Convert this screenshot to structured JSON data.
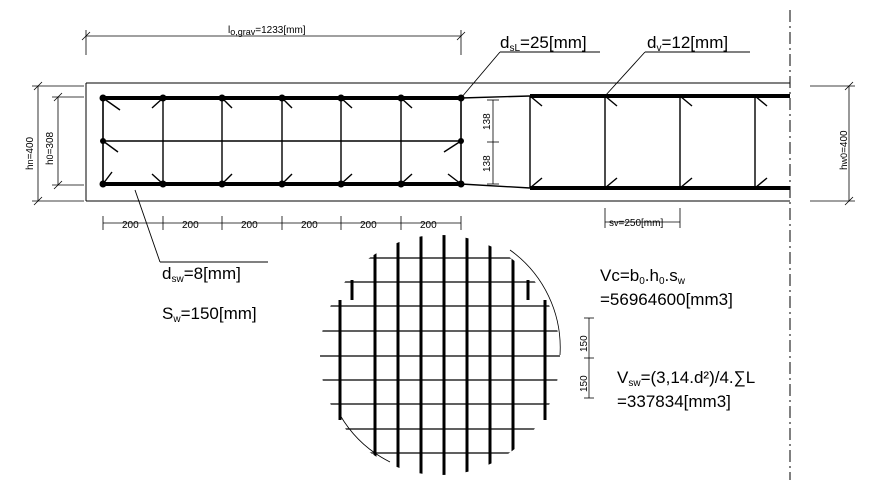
{
  "dimensions": {
    "top_length": {
      "pre": "l",
      "sub": "o,grav",
      "post": "=1233[mm]"
    },
    "left_h": {
      "pre": "h",
      "sub": "n",
      "post": "=400"
    },
    "left_h0": {
      "pre": "h",
      "sub": "0",
      "post": "=308"
    },
    "right_h": {
      "pre": "h",
      "sub": "w0",
      "post": "=400"
    },
    "spacings": [
      "200",
      "200",
      "200",
      "200",
      "200",
      "200"
    ],
    "sw": {
      "pre": "s",
      "sub": "v",
      "post": "=250[mm]"
    },
    "half_top": "138",
    "half_bottom": "138",
    "grid_spacing_1": "150",
    "grid_spacing_2": "150"
  },
  "labels": {
    "dsl": {
      "pre": "d",
      "sub": "sL",
      "post": "=25[mm]"
    },
    "dv": {
      "pre": "d",
      "sub": "v",
      "post": "=12[mm]"
    },
    "dsw": {
      "pre": "d",
      "sub": "sw",
      "post": "=8[mm]"
    },
    "Sw": {
      "pre": "S",
      "sub": "w",
      "post": "=150[mm]"
    }
  },
  "formulas": {
    "vc_line1": {
      "pre": "Vc=b",
      "sub1": "0",
      "mid": ".h",
      "sub2": "0",
      "mid2": ".s",
      "sub3": "w"
    },
    "vc_line2": "=56964600[mm3]",
    "vsw_line1": {
      "pre": "V",
      "sub": "sw",
      "post": "=(3,14.d²)/4.∑L"
    },
    "vsw_line2": "=337834[mm3]"
  }
}
